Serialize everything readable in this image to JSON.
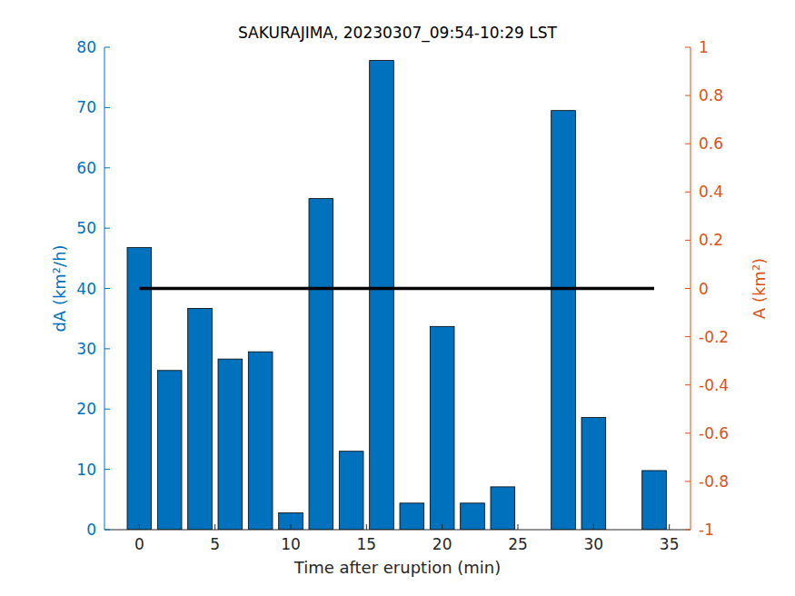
{
  "chart_data": {
    "type": "bar",
    "title": "SAKURAJIMA, 20230307_09:54-10:29 LST",
    "xlabel": "Time after eruption (min)",
    "ylabel": "dA (km²/h)",
    "y2label": "A (km²)",
    "x": [
      0,
      2,
      4,
      6,
      8,
      10,
      12,
      14,
      16,
      18,
      20,
      22,
      24,
      26,
      28,
      30,
      32,
      34
    ],
    "series": [
      {
        "type": "bar",
        "color": "#0072bd",
        "values": [
          46.8,
          26.4,
          36.7,
          28.3,
          29.5,
          2.8,
          54.9,
          13.0,
          77.8,
          4.4,
          33.7,
          4.4,
          7.1,
          0,
          69.5,
          18.6,
          0,
          9.8
        ]
      },
      {
        "type": "line",
        "axis": "y2",
        "color": "#000000",
        "values": [
          0,
          0,
          0,
          0,
          0,
          0,
          0,
          0,
          0,
          0,
          0,
          0,
          0,
          0,
          0,
          0,
          0,
          0
        ]
      }
    ],
    "xlim": [
      -2.3,
      36.4
    ],
    "xticks": [
      0,
      5,
      10,
      15,
      20,
      25,
      30,
      35
    ],
    "ylim": [
      0,
      80
    ],
    "yticks": [
      0,
      10,
      20,
      30,
      40,
      50,
      60,
      70,
      80
    ],
    "y2lim": [
      -1,
      1
    ],
    "y2ticks": [
      -1,
      -0.8,
      -0.6,
      -0.4,
      -0.2,
      0,
      0.2,
      0.4,
      0.6,
      0.8,
      1
    ],
    "grid": false
  }
}
